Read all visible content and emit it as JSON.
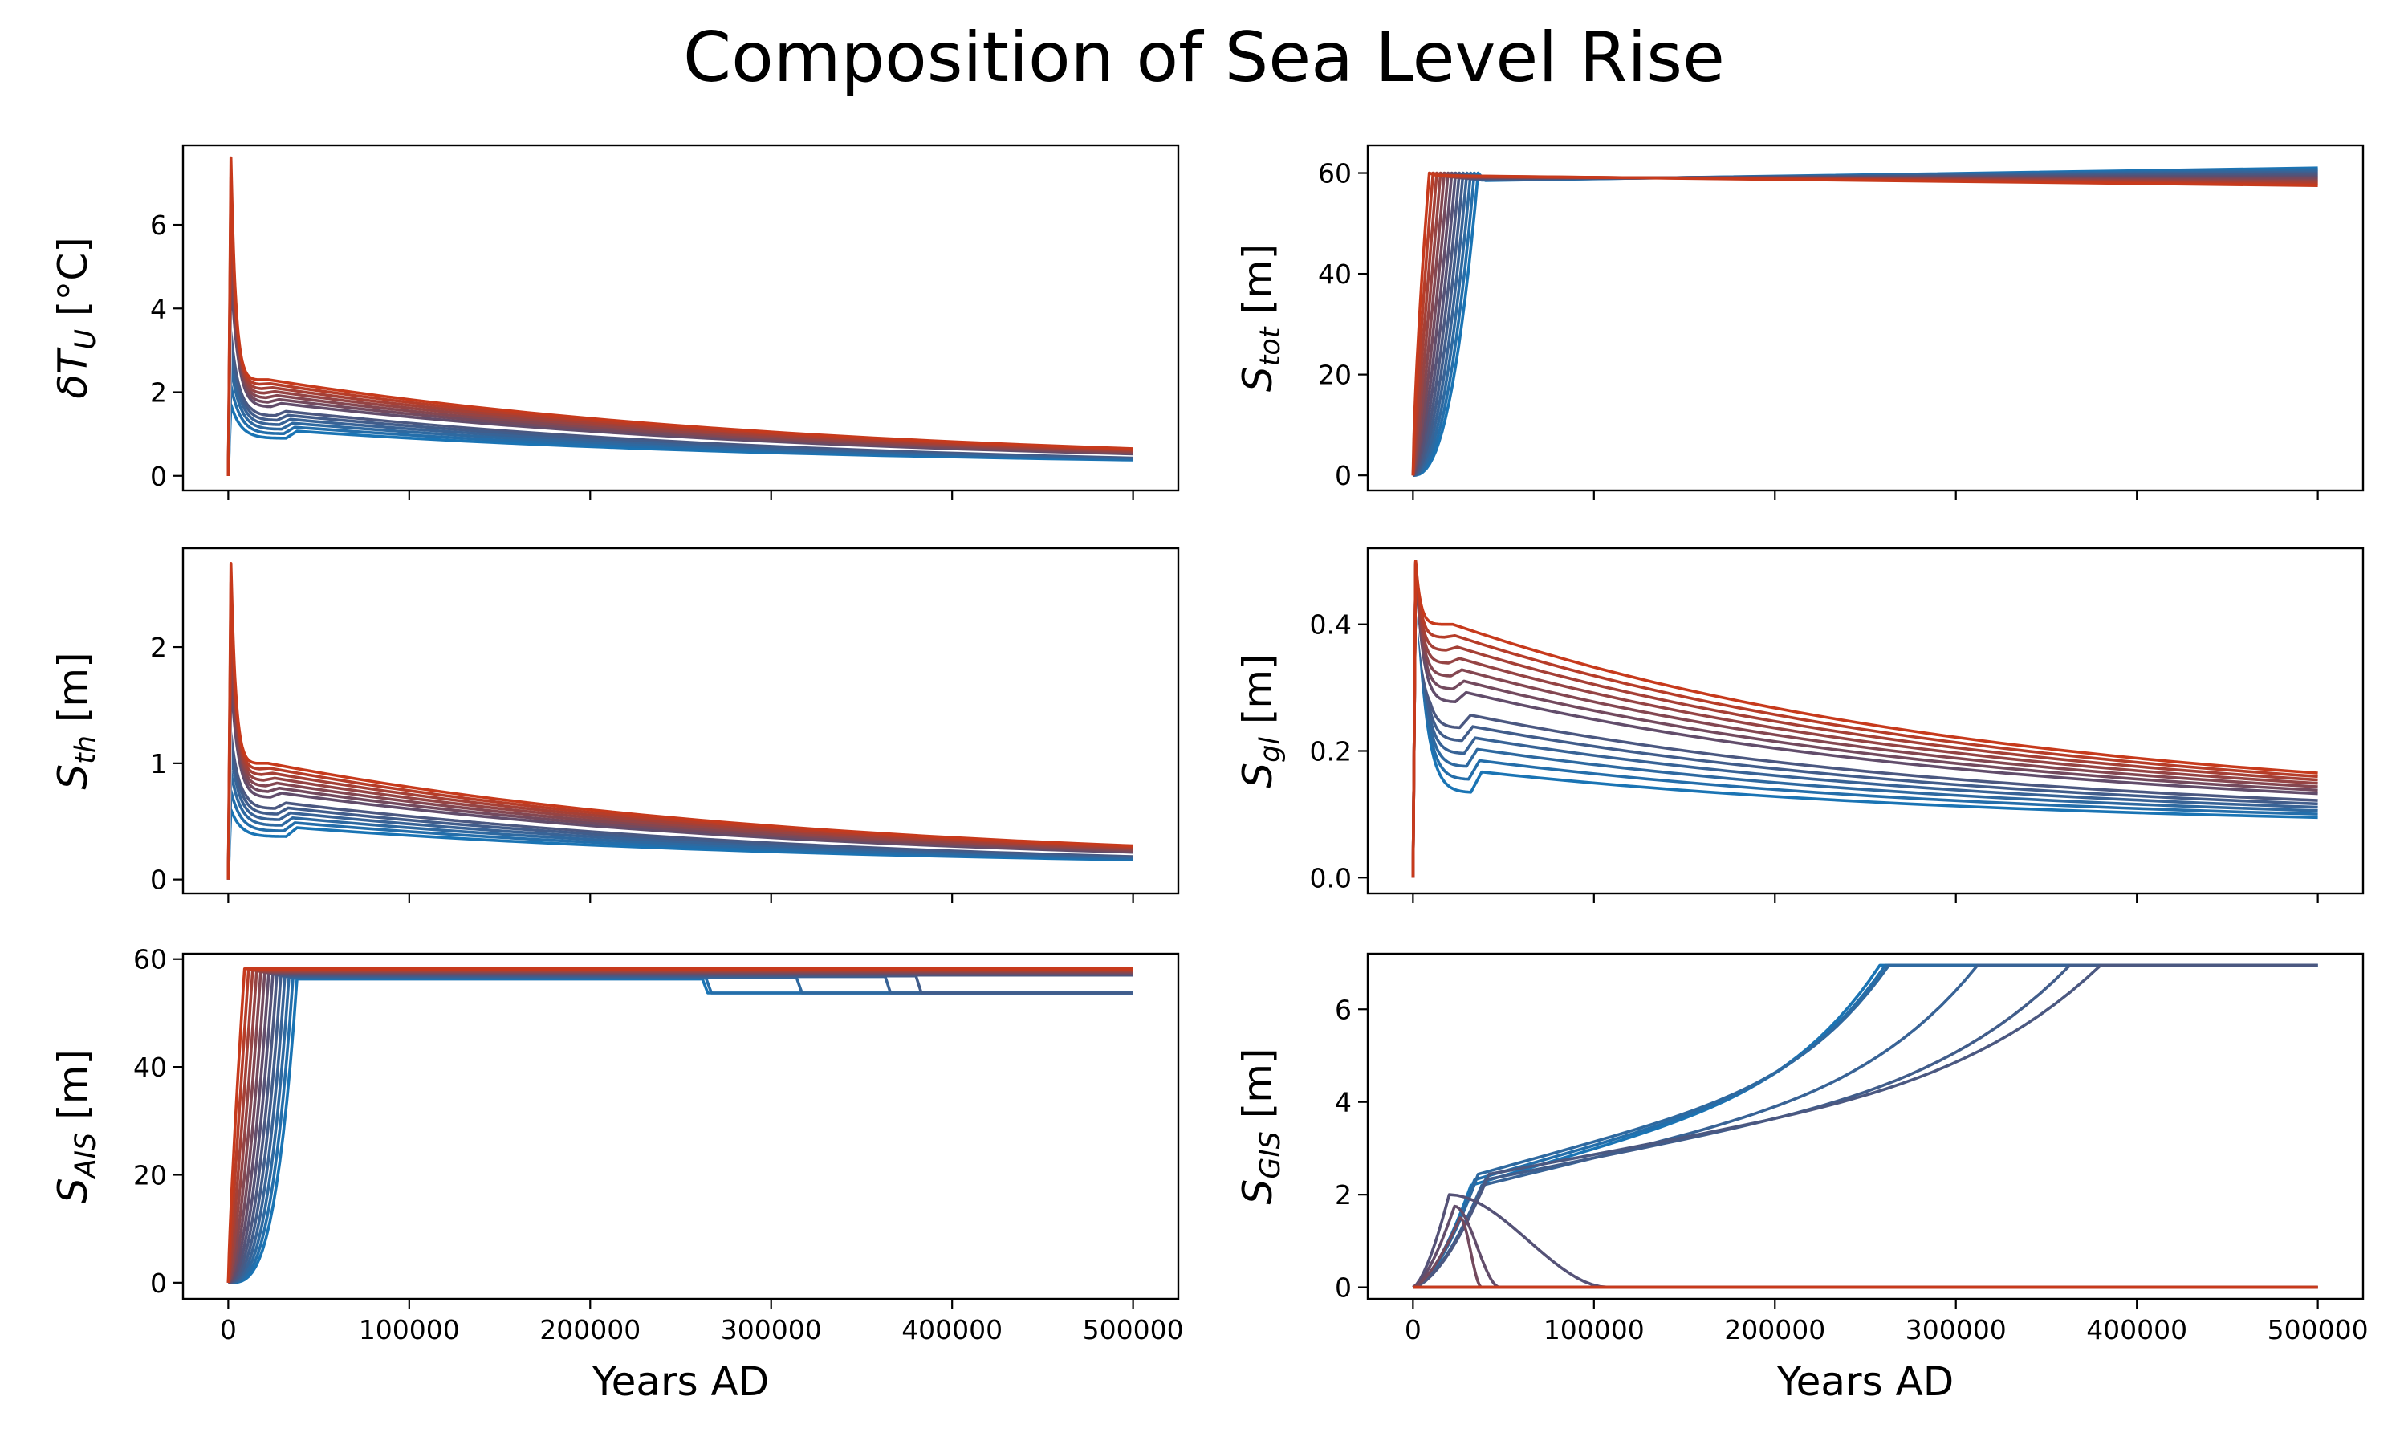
{
  "figure": {
    "title": "Composition of Sea Level Rise",
    "colors": {
      "coolest": "#1a74b4",
      "mid": "#5a4f72",
      "hottest": "#c73a1c",
      "highlight": "#ffffff"
    }
  },
  "chart_data": [
    {
      "type": "line",
      "panel": "top-left",
      "ylabel": {
        "main": "δT",
        "sub": "U",
        "unit": " [°C]",
        "italic_main": true
      },
      "xlabel": "",
      "xlim": [
        -25000,
        525000
      ],
      "ylim": [
        -0.35,
        7.9
      ],
      "xticks": [
        0,
        100000,
        200000,
        300000,
        400000,
        500000
      ],
      "xtick_labels": [],
      "yticks": [
        0,
        2,
        4,
        6
      ],
      "ytick_labels": [
        "0",
        "2",
        "4",
        "6"
      ],
      "family": {
        "kind": "temp",
        "count": 14,
        "peak_min": 1.7,
        "peak_max": 7.6,
        "dip_min": 0.9,
        "dip_max": 2.3,
        "end_min": 0.38,
        "end_max": 0.65,
        "white_index": 6
      }
    },
    {
      "type": "line",
      "panel": "top-right",
      "ylabel": {
        "main": "S",
        "sub": "tot",
        "unit": " [m]",
        "italic_main": true
      },
      "xlabel": "",
      "xlim": [
        -25000,
        525000
      ],
      "ylim": [
        -3,
        65.5
      ],
      "xticks": [
        0,
        100000,
        200000,
        300000,
        400000,
        500000
      ],
      "xtick_labels": [],
      "yticks": [
        0,
        20,
        40,
        60
      ],
      "ytick_labels": [
        "0",
        "20",
        "40",
        "60"
      ],
      "family": {
        "kind": "total",
        "count": 14,
        "plateau": 60,
        "end_min": 57.5,
        "end_max": 61
      }
    },
    {
      "type": "line",
      "panel": "middle-left",
      "ylabel": {
        "main": "S",
        "sub": "th",
        "unit": " [m]",
        "italic_main": true
      },
      "xlabel": "",
      "xlim": [
        -25000,
        525000
      ],
      "ylim": [
        -0.12,
        2.85
      ],
      "xticks": [
        0,
        100000,
        200000,
        300000,
        400000,
        500000
      ],
      "xtick_labels": [],
      "yticks": [
        0,
        1,
        2
      ],
      "ytick_labels": [
        "0",
        "1",
        "2"
      ],
      "family": {
        "kind": "temp",
        "count": 14,
        "peak_min": 0.6,
        "peak_max": 2.72,
        "dip_min": 0.37,
        "dip_max": 1.0,
        "end_min": 0.17,
        "end_max": 0.29,
        "white_index": 6
      }
    },
    {
      "type": "line",
      "panel": "middle-right",
      "ylabel": {
        "main": "S",
        "sub": "gl",
        "unit": " [m]",
        "italic_main": true
      },
      "xlabel": "",
      "xlim": [
        -25000,
        525000
      ],
      "ylim": [
        -0.025,
        0.52
      ],
      "xticks": [
        0,
        100000,
        200000,
        300000,
        400000,
        500000
      ],
      "xtick_labels": [],
      "yticks": [
        0.0,
        0.2,
        0.4
      ],
      "ytick_labels": [
        "0.0",
        "0.2",
        "0.4"
      ],
      "family": {
        "kind": "temp",
        "count": 14,
        "peak_min": 0.49,
        "peak_max": 0.5,
        "dip_min": 0.135,
        "dip_max": 0.4,
        "end_min": 0.095,
        "end_max": 0.165,
        "white_index": 6
      }
    },
    {
      "type": "line",
      "panel": "bottom-left",
      "ylabel": {
        "main": "S",
        "sub": "AIS",
        "unit": " [m]",
        "italic_main": true
      },
      "xlabel": "Years AD",
      "xlim": [
        -25000,
        525000
      ],
      "ylim": [
        -3,
        61
      ],
      "xticks": [
        0,
        100000,
        200000,
        300000,
        400000,
        500000
      ],
      "xtick_labels": [
        "0",
        "100000",
        "200000",
        "300000",
        "400000",
        "500000"
      ],
      "yticks": [
        0,
        20,
        40,
        60
      ],
      "ytick_labels": [
        "0",
        "20",
        "40",
        "60"
      ],
      "family": {
        "kind": "ais",
        "count": 14,
        "plateau_min": 56.3,
        "plateau_max": 58.2,
        "drop_to": 53.7
      }
    },
    {
      "type": "line",
      "panel": "bottom-right",
      "ylabel": {
        "main": "S",
        "sub": "GIS",
        "unit": " [m]",
        "italic_main": true
      },
      "xlabel": "Years AD",
      "xlim": [
        -25000,
        525000
      ],
      "ylim": [
        -0.25,
        7.2
      ],
      "xticks": [
        0,
        100000,
        200000,
        300000,
        400000,
        500000
      ],
      "xtick_labels": [
        "0",
        "100000",
        "200000",
        "300000",
        "400000",
        "500000"
      ],
      "yticks": [
        0,
        2,
        4,
        6
      ],
      "ytick_labels": [
        "0",
        "2",
        "4",
        "6"
      ],
      "family": {
        "kind": "gis",
        "count": 14,
        "max": 6.95,
        "full_melt_times": [
          258000,
          261000,
          263000,
          312000,
          363000,
          380000
        ]
      }
    }
  ]
}
